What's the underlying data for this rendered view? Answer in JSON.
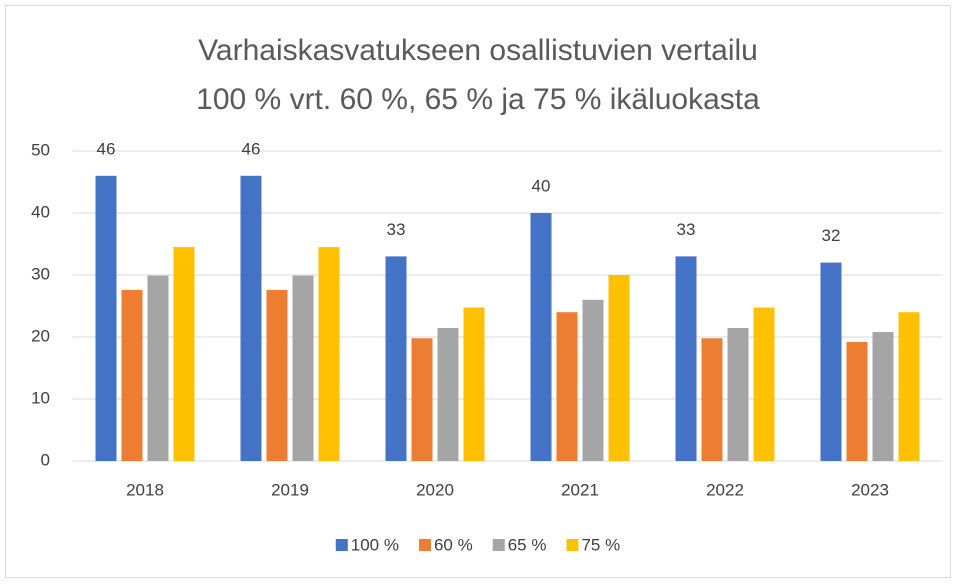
{
  "chart_data": {
    "type": "bar",
    "title": [
      "Varhaiskasvatukseen osallistuvien vertailu",
      "100 % vrt. 60 %, 65 % ja 75 % ikäluokasta"
    ],
    "categories": [
      "2018",
      "2019",
      "2020",
      "2021",
      "2022",
      "2023"
    ],
    "series": [
      {
        "name": "100 %",
        "color": "#4472c4",
        "values": [
          46,
          46,
          33,
          40,
          33,
          32
        ],
        "data_labels": true
      },
      {
        "name": "60 %",
        "color": "#ed7d31",
        "values": [
          27.6,
          27.6,
          19.8,
          24,
          19.8,
          19.2
        ],
        "data_labels": false
      },
      {
        "name": "65 %",
        "color": "#a5a5a5",
        "values": [
          29.9,
          29.9,
          21.45,
          26,
          21.45,
          20.8
        ],
        "data_labels": false
      },
      {
        "name": "75 %",
        "color": "#ffc000",
        "values": [
          34.5,
          34.5,
          24.75,
          30,
          24.75,
          24
        ],
        "data_labels": false
      }
    ],
    "ylim": [
      0,
      50
    ],
    "yticks": [
      0,
      10,
      20,
      30,
      40,
      50
    ],
    "grid": true,
    "legend": "bottom"
  }
}
